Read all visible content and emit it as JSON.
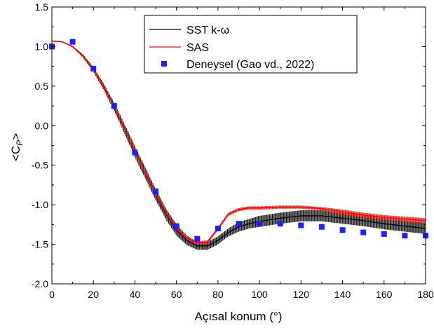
{
  "chart_data": {
    "type": "line",
    "xlabel": "Açısal konum (°)",
    "ylabel": "<C_P>",
    "xlim": [
      0,
      180
    ],
    "ylim": [
      -2.0,
      1.5
    ],
    "x_ticks": [
      0,
      20,
      40,
      60,
      80,
      100,
      120,
      140,
      160,
      180
    ],
    "x_tick_labels": [
      "0",
      "20",
      "40",
      "60",
      "80",
      "100",
      "120",
      "140",
      "160",
      "180"
    ],
    "y_ticks": [
      -2.0,
      -1.5,
      -1.0,
      -0.5,
      0.0,
      0.5,
      1.0,
      1.5
    ],
    "y_tick_labels": [
      "-2.0",
      "-1.5",
      "-1.0",
      "-0.5",
      "0.0",
      "0.5",
      "1.0",
      "1.5"
    ],
    "grid": false,
    "legend_position": "top-right",
    "series": [
      {
        "name": "SST k-ω",
        "color": "#000000",
        "style": "line-with-fluctuation-band",
        "x": [
          0,
          5,
          10,
          15,
          20,
          25,
          30,
          35,
          40,
          45,
          50,
          55,
          60,
          65,
          70,
          75,
          80,
          85,
          90,
          95,
          100,
          110,
          120,
          130,
          140,
          150,
          160,
          170,
          180
        ],
        "values": [
          1.07,
          1.06,
          1.0,
          0.88,
          0.71,
          0.49,
          0.24,
          -0.04,
          -0.33,
          -0.6,
          -0.87,
          -1.12,
          -1.32,
          -1.45,
          -1.52,
          -1.52,
          -1.45,
          -1.35,
          -1.28,
          -1.24,
          -1.21,
          -1.17,
          -1.14,
          -1.14,
          -1.17,
          -1.2,
          -1.24,
          -1.27,
          -1.3
        ],
        "band_half_width": [
          0,
          0,
          0.01,
          0.02,
          0.03,
          0.04,
          0.05,
          0.06,
          0.07,
          0.07,
          0.07,
          0.07,
          0.07,
          0.06,
          0.05,
          0.05,
          0.05,
          0.05,
          0.06,
          0.06,
          0.07,
          0.07,
          0.07,
          0.07,
          0.07,
          0.07,
          0.07,
          0.07,
          0.07
        ]
      },
      {
        "name": "SAS",
        "color": "#ff0000",
        "style": "line-with-fluctuation-band",
        "x": [
          0,
          5,
          10,
          15,
          20,
          25,
          30,
          35,
          40,
          45,
          50,
          55,
          60,
          65,
          70,
          75,
          80,
          85,
          90,
          95,
          100,
          110,
          120,
          130,
          140,
          150,
          160,
          170,
          180
        ],
        "values": [
          1.07,
          1.06,
          1.0,
          0.88,
          0.71,
          0.49,
          0.24,
          -0.04,
          -0.33,
          -0.6,
          -0.86,
          -1.1,
          -1.3,
          -1.42,
          -1.48,
          -1.47,
          -1.3,
          -1.12,
          -1.06,
          -1.04,
          -1.04,
          -1.03,
          -1.03,
          -1.05,
          -1.09,
          -1.13,
          -1.16,
          -1.18,
          -1.2
        ],
        "band_half_width": [
          0,
          0,
          0.01,
          0.01,
          0.02,
          0.02,
          0.02,
          0.02,
          0.02,
          0.02,
          0.02,
          0.02,
          0.02,
          0.02,
          0.02,
          0.02,
          0.02,
          0.02,
          0.02,
          0.02,
          0.02,
          0.02,
          0.02,
          0.02,
          0.03,
          0.03,
          0.03,
          0.03,
          0.03
        ]
      },
      {
        "name": "Deneysel (Gao vd., 2022)",
        "color": "#1f1fff",
        "style": "square-markers",
        "x": [
          0,
          10,
          20,
          30,
          40,
          50,
          60,
          70,
          80,
          90,
          100,
          110,
          120,
          130,
          140,
          150,
          160,
          170,
          180
        ],
        "values": [
          1.0,
          1.06,
          0.72,
          0.25,
          -0.34,
          -0.83,
          -1.27,
          -1.43,
          -1.3,
          -1.24,
          -1.24,
          -1.24,
          -1.26,
          -1.28,
          -1.32,
          -1.35,
          -1.37,
          -1.39,
          -1.39
        ]
      }
    ]
  }
}
